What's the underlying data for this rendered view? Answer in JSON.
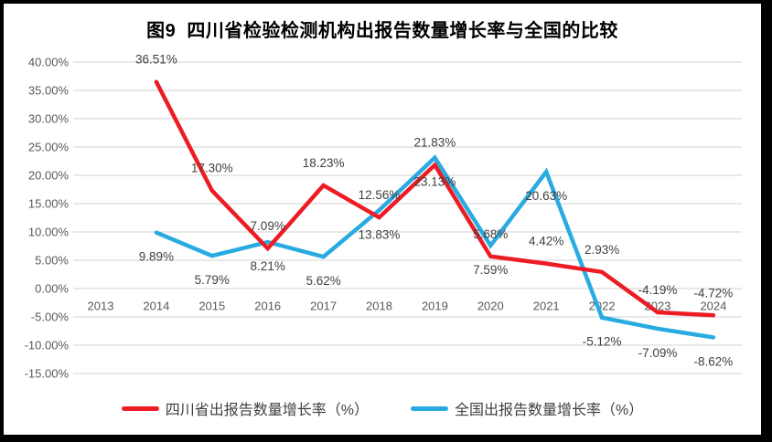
{
  "colors": {
    "sichuan_red": "#ED1C24",
    "national_blue": "#29ABE2",
    "gridline": "#D9D9D9",
    "axis_text": "#595959",
    "data_label_text": "#404040",
    "title_text": "#000000",
    "frame_border": "#000000",
    "background": "#FFFFFF"
  },
  "chart_data": {
    "type": "line",
    "title": "图9  四川省检验检测机构出报告数量增长率与全国的比较",
    "xlabel": "",
    "ylabel": "",
    "categories": [
      "2013",
      "2014",
      "2015",
      "2016",
      "2017",
      "2018",
      "2019",
      "2020",
      "2021",
      "2022",
      "2023",
      "2024"
    ],
    "series": [
      {
        "name": "四川省出报告数量增长率（%）",
        "color": "#ED1C24",
        "label_position": "above",
        "values": [
          null,
          36.51,
          17.3,
          7.09,
          18.23,
          12.56,
          21.83,
          5.68,
          4.42,
          2.93,
          -4.19,
          -4.72
        ]
      },
      {
        "name": "全国出报告数量增长率（%）",
        "color": "#29ABE2",
        "label_position": "below",
        "values": [
          null,
          9.89,
          5.79,
          8.21,
          5.62,
          13.83,
          23.13,
          7.59,
          20.63,
          -5.12,
          -7.09,
          -8.62
        ]
      }
    ],
    "ylim": [
      -15,
      40
    ],
    "ytick_step": 5,
    "ytick_format": "0.00%",
    "data_label_format": "0.00%",
    "grid": true,
    "legend_position": "bottom"
  }
}
